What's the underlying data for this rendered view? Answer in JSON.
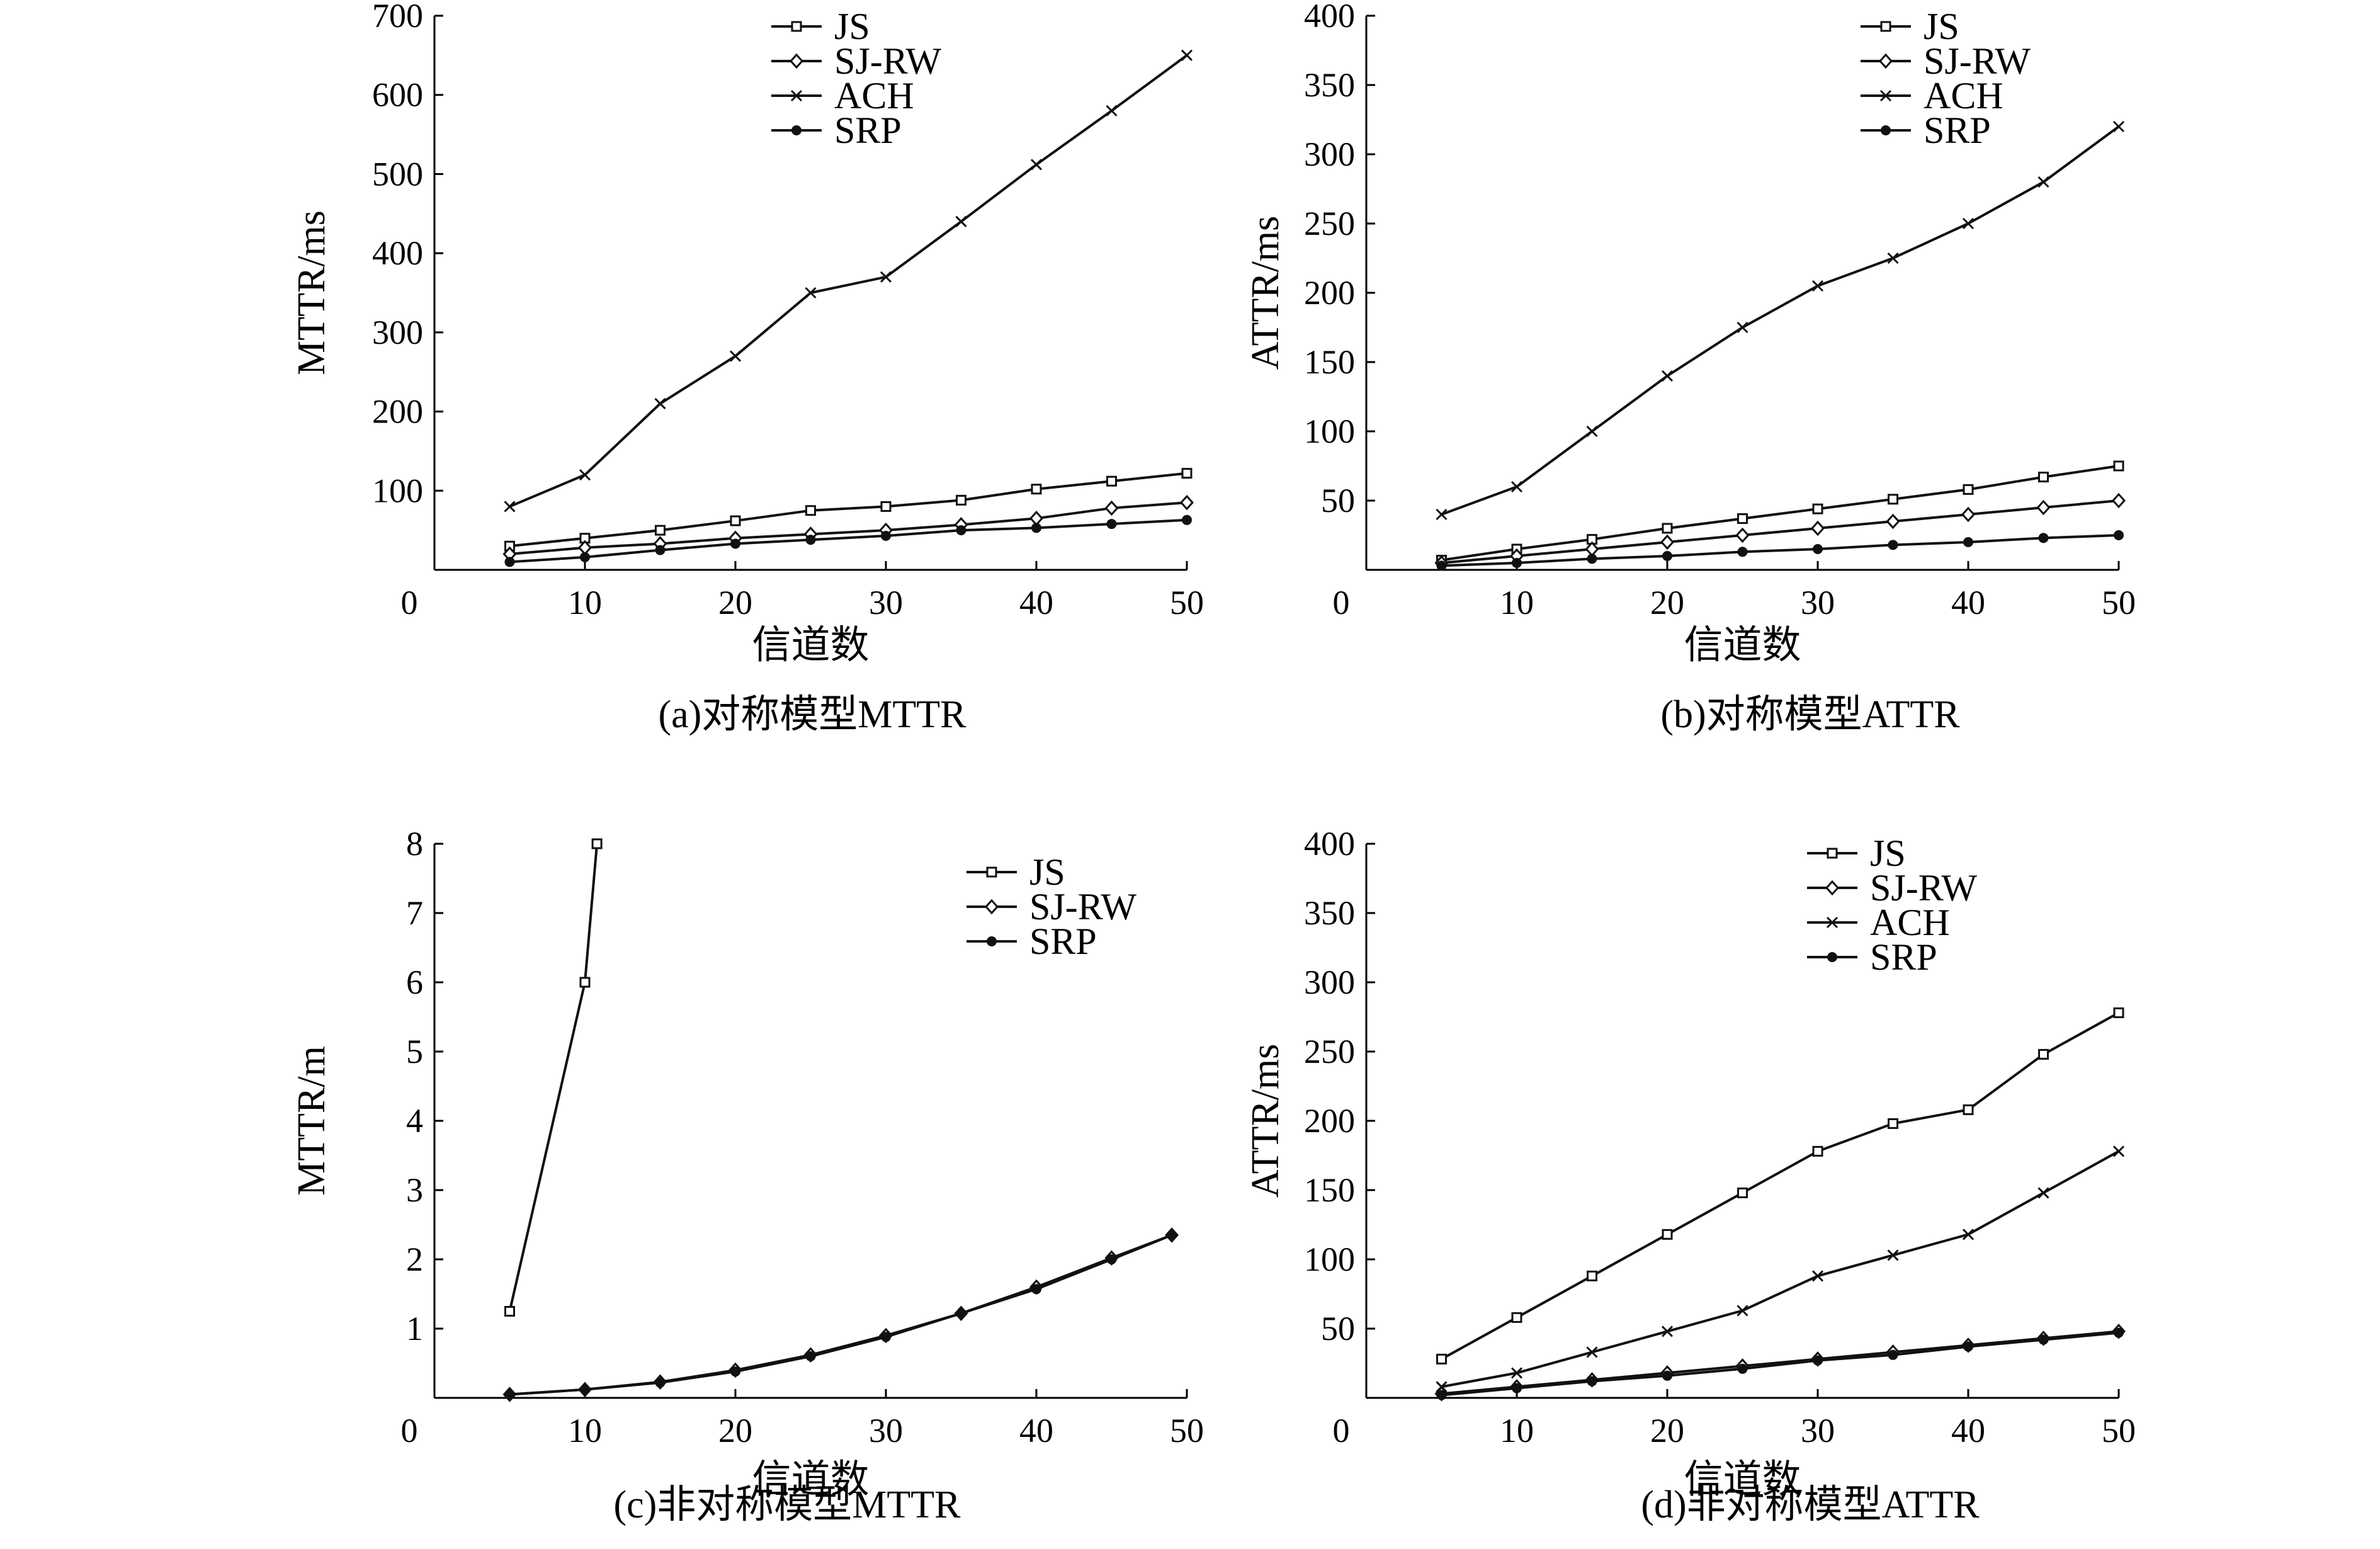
{
  "chart_data": [
    {
      "type": "line",
      "title": "(a)对称模型MTTR",
      "xlabel": "信道数",
      "ylabel": "MTTR/ms",
      "xlim": [
        0,
        50
      ],
      "ylim": [
        0,
        700
      ],
      "xticks": [
        0,
        10,
        20,
        30,
        40,
        50
      ],
      "yticks": [
        100,
        200,
        300,
        400,
        500,
        600,
        700
      ],
      "legend": "top-center",
      "series": [
        {
          "name": "JS",
          "marker": "square",
          "x": [
            5,
            10,
            15,
            20,
            25,
            30,
            35,
            40,
            45,
            50
          ],
          "y": [
            30,
            40,
            50,
            62,
            75,
            80,
            88,
            102,
            112,
            122
          ]
        },
        {
          "name": "SJ-RW",
          "marker": "diamond",
          "x": [
            5,
            10,
            15,
            20,
            25,
            30,
            35,
            40,
            45,
            50
          ],
          "y": [
            20,
            28,
            33,
            40,
            45,
            50,
            57,
            65,
            78,
            85
          ]
        },
        {
          "name": "ACH",
          "marker": "x",
          "x": [
            5,
            10,
            15,
            20,
            25,
            30,
            35,
            40,
            45,
            50
          ],
          "y": [
            80,
            120,
            210,
            270,
            350,
            370,
            440,
            512,
            580,
            650
          ]
        },
        {
          "name": "SRP",
          "marker": "dot",
          "x": [
            5,
            10,
            15,
            20,
            25,
            30,
            35,
            40,
            45,
            50
          ],
          "y": [
            10,
            16,
            25,
            33,
            38,
            43,
            50,
            53,
            58,
            63
          ]
        }
      ]
    },
    {
      "type": "line",
      "title": "(b)对称模型ATTR",
      "xlabel": "信道数",
      "ylabel": "ATTR/ms",
      "xlim": [
        0,
        50
      ],
      "ylim": [
        0,
        400
      ],
      "xticks": [
        0,
        10,
        20,
        30,
        40,
        50
      ],
      "yticks": [
        50,
        100,
        150,
        200,
        250,
        300,
        350,
        400
      ],
      "legend": "top-center",
      "series": [
        {
          "name": "JS",
          "marker": "square",
          "x": [
            5,
            10,
            15,
            20,
            25,
            30,
            35,
            40,
            45,
            50
          ],
          "y": [
            7,
            15,
            22,
            30,
            37,
            44,
            51,
            58,
            67,
            75
          ]
        },
        {
          "name": "SJ-RW",
          "marker": "diamond",
          "x": [
            5,
            10,
            15,
            20,
            25,
            30,
            35,
            40,
            45,
            50
          ],
          "y": [
            5,
            10,
            15,
            20,
            25,
            30,
            35,
            40,
            45,
            50
          ]
        },
        {
          "name": "ACH",
          "marker": "x",
          "x": [
            5,
            10,
            15,
            20,
            25,
            30,
            35,
            40,
            45,
            50
          ],
          "y": [
            40,
            60,
            100,
            140,
            175,
            205,
            225,
            250,
            280,
            320
          ]
        },
        {
          "name": "SRP",
          "marker": "dot",
          "x": [
            5,
            10,
            15,
            20,
            25,
            30,
            35,
            40,
            45,
            50
          ],
          "y": [
            3,
            5,
            8,
            10,
            13,
            15,
            18,
            20,
            23,
            25
          ]
        }
      ]
    },
    {
      "type": "line",
      "title": "(c)非对称模型MTTR",
      "xlabel": "信道数",
      "ylabel": "MTTR/m",
      "xlim": [
        0,
        50
      ],
      "ylim": [
        0,
        8
      ],
      "xticks": [
        0,
        10,
        20,
        30,
        40,
        50
      ],
      "yticks": [
        1,
        2,
        3,
        4,
        5,
        6,
        7,
        8
      ],
      "legend": "top-right",
      "series": [
        {
          "name": "JS",
          "marker": "square",
          "x": [
            5,
            10,
            10.8
          ],
          "y": [
            1.25,
            6,
            8
          ]
        },
        {
          "name": "SJ-RW",
          "marker": "diamond",
          "x": [
            5,
            10,
            15,
            20,
            25,
            30,
            35,
            40,
            45,
            49
          ],
          "y": [
            0.05,
            0.12,
            0.23,
            0.4,
            0.62,
            0.9,
            1.22,
            1.6,
            2.02,
            2.35
          ]
        },
        {
          "name": "SRP",
          "marker": "dot",
          "x": [
            5,
            10,
            15,
            20,
            25,
            30,
            35,
            40,
            45,
            49
          ],
          "y": [
            0.05,
            0.12,
            0.22,
            0.38,
            0.6,
            0.88,
            1.22,
            1.57,
            2.0,
            2.35
          ]
        }
      ]
    },
    {
      "type": "line",
      "title": "(d)非对称模型ATTR",
      "xlabel": "信道数",
      "ylabel": "ATTR/ms",
      "xlim": [
        0,
        50
      ],
      "ylim": [
        0,
        400
      ],
      "xticks": [
        0,
        10,
        20,
        30,
        40,
        50
      ],
      "yticks": [
        50,
        100,
        150,
        200,
        250,
        300,
        350,
        400
      ],
      "legend": "top-center",
      "series": [
        {
          "name": "JS",
          "marker": "square",
          "x": [
            5,
            10,
            15,
            20,
            25,
            30,
            35,
            40,
            45,
            50
          ],
          "y": [
            28,
            58,
            88,
            118,
            148,
            178,
            198,
            208,
            248,
            278
          ]
        },
        {
          "name": "SJ-RW",
          "marker": "diamond",
          "x": [
            5,
            10,
            15,
            20,
            25,
            30,
            35,
            40,
            45,
            50
          ],
          "y": [
            3,
            8,
            13,
            18,
            23,
            28,
            33,
            38,
            43,
            48
          ]
        },
        {
          "name": "ACH",
          "marker": "x",
          "x": [
            5,
            10,
            15,
            20,
            25,
            30,
            35,
            40,
            45,
            50
          ],
          "y": [
            8,
            18,
            33,
            48,
            63,
            88,
            103,
            118,
            148,
            178
          ]
        },
        {
          "name": "SRP",
          "marker": "dot",
          "x": [
            5,
            10,
            15,
            20,
            25,
            30,
            35,
            40,
            45,
            50
          ],
          "y": [
            2,
            7,
            12,
            16,
            21,
            27,
            31,
            37,
            42,
            47
          ]
        }
      ]
    }
  ]
}
